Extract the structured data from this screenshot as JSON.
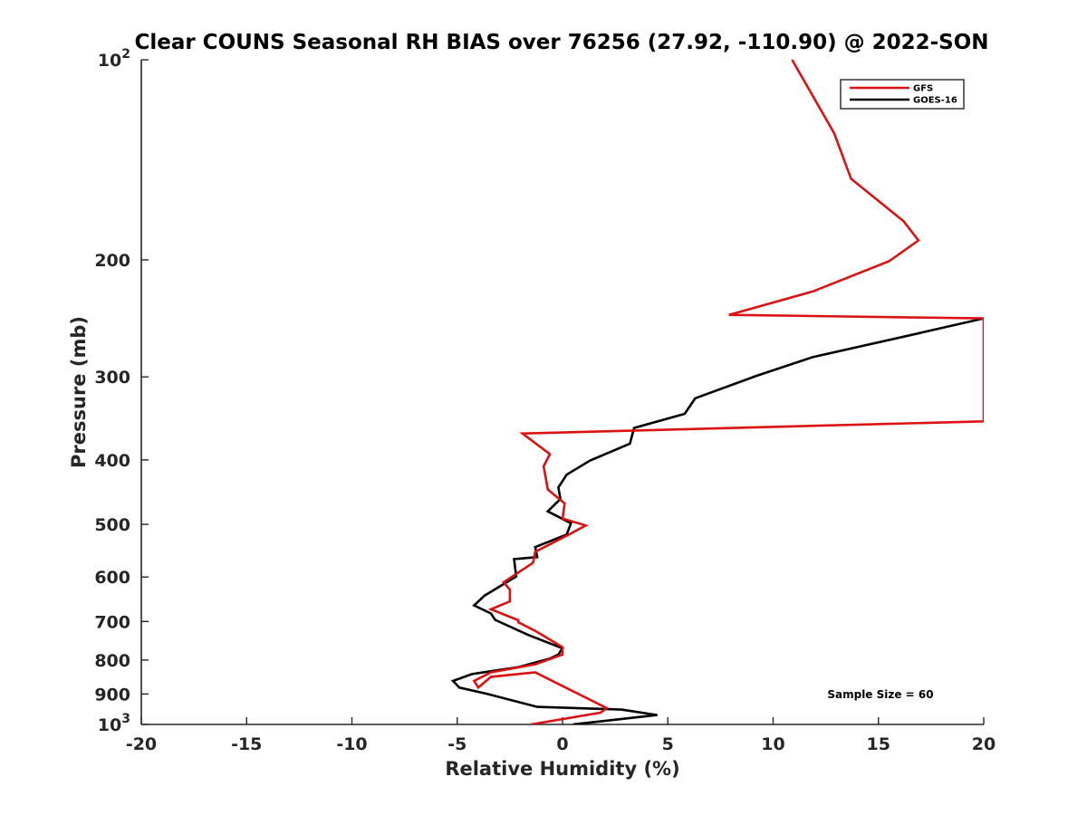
{
  "chart_data": {
    "type": "line",
    "title": "Clear COUNS Seasonal RH BIAS over 76256 (27.92, -110.90) @ 2022-SON",
    "xlabel": "Relative Humidity (%)",
    "ylabel": "Pressure (mb)",
    "xlim": [
      -20,
      20
    ],
    "ylim": [
      100,
      1000
    ],
    "yscale": "log",
    "y_reversed": true,
    "grid": false,
    "legend_position": "top-right",
    "x_ticks": [
      "-20",
      "-15",
      "-10",
      "-5",
      "0",
      "5",
      "10",
      "15",
      "20"
    ],
    "y_ticks": [
      {
        "value": 100,
        "base": "10",
        "exp": "2"
      },
      {
        "value": 200,
        "label": "200"
      },
      {
        "value": 300,
        "label": "300"
      },
      {
        "value": 400,
        "label": "400"
      },
      {
        "value": 500,
        "label": "500"
      },
      {
        "value": 600,
        "label": "600"
      },
      {
        "value": 700,
        "label": "700"
      },
      {
        "value": 800,
        "label": "800"
      },
      {
        "value": 900,
        "label": "900"
      },
      {
        "value": 1000,
        "base": "10",
        "exp": "3"
      }
    ],
    "annotation": "Sample Size = 60",
    "series": [
      {
        "name": "GFS",
        "color": "#dd1111",
        "x": [
          10.9,
          12.9,
          13.7,
          16.2,
          16.9,
          15.5,
          11.9,
          7.9,
          20.0,
          20.0,
          -1.9,
          -0.6,
          -0.9,
          -0.8,
          -0.7,
          0.1,
          0.0,
          1.1,
          0.3,
          -1.3,
          -1.4,
          -2.8,
          -2.5,
          -2.5,
          -3.4,
          -2.1,
          -2.1,
          -1.3,
          0.0,
          0.0,
          -1.3,
          -3.4,
          -4.2,
          -4.0,
          -3.4,
          -1.3,
          2.1,
          1.8,
          -1.5
        ],
        "y": [
          100,
          129,
          151,
          175,
          187,
          201,
          223,
          242,
          245,
          350,
          365,
          392,
          409,
          425,
          443,
          465,
          490,
          502,
          518,
          550,
          571,
          611,
          627,
          653,
          671,
          697,
          702,
          723,
          765,
          785,
          812,
          835,
          860,
          880,
          848,
          835,
          945,
          960,
          1000
        ]
      },
      {
        "name": "GOES-16",
        "color": "#000000",
        "x": [
          20.0,
          16.2,
          11.9,
          9.2,
          6.3,
          5.8,
          3.4,
          3.2,
          1.3,
          0.2,
          -0.2,
          -0.1,
          -0.7,
          0.4,
          0.2,
          -1.3,
          -1.2,
          -2.3,
          -2.2,
          -3.7,
          -4.2,
          -3.4,
          -3.2,
          -1.6,
          0.0,
          -0.2,
          -0.6,
          -2.1,
          -4.3,
          -5.2,
          -4.9,
          -3.6,
          -1.2,
          2.8,
          4.5,
          0.5
        ],
        "y": [
          245,
          261,
          280,
          299,
          323,
          341,
          358,
          378,
          401,
          421,
          440,
          458,
          478,
          498,
          518,
          541,
          560,
          564,
          599,
          640,
          662,
          681,
          696,
          734,
          768,
          785,
          796,
          820,
          840,
          860,
          880,
          899,
          941,
          950,
          968,
          1000
        ]
      }
    ]
  }
}
